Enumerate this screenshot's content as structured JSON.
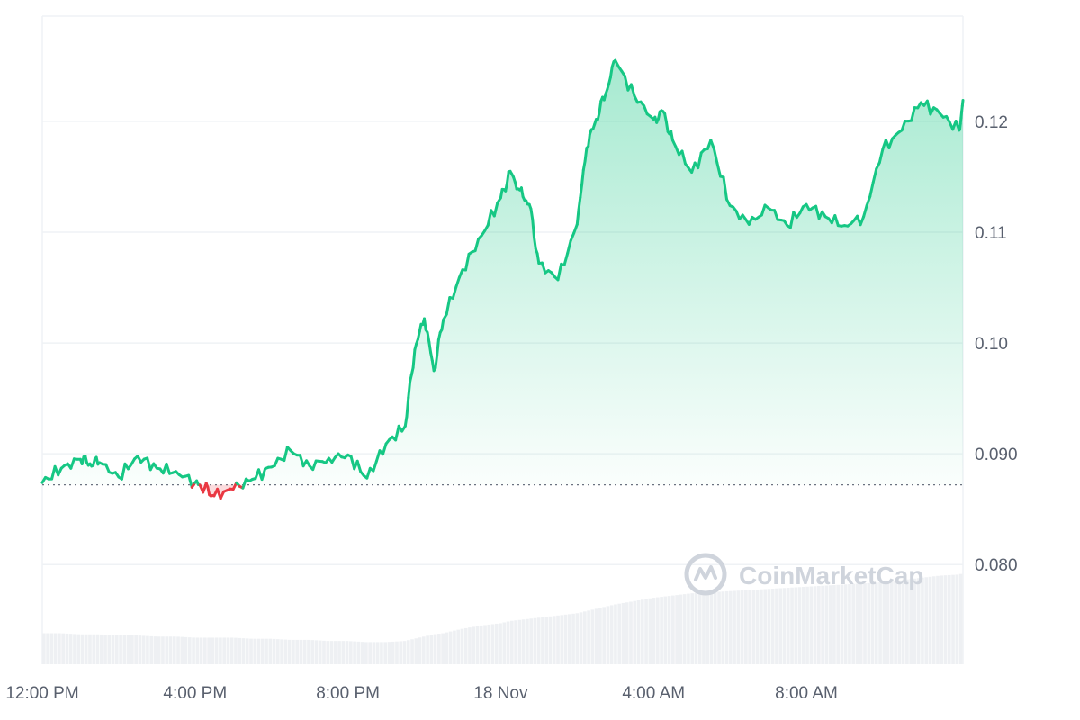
{
  "chart_data": {
    "type": "area",
    "title": "",
    "xlabel": "",
    "ylabel": "",
    "x_tick_labels": [
      "12:00 PM",
      "4:00 PM",
      "8:00 PM",
      "18 Nov",
      "4:00 AM",
      "8:00 AM"
    ],
    "x_tick_hours": [
      0,
      4,
      8,
      12,
      16,
      20
    ],
    "y_tick_labels": [
      "0.080",
      "0.090",
      "0.10",
      "0.11",
      "0.12"
    ],
    "y_ticks": [
      0.08,
      0.09,
      0.1,
      0.11,
      0.12
    ],
    "ylim": [
      0.071,
      0.1295
    ],
    "xlim_hours": [
      0,
      24.1
    ],
    "baseline": 0.0872,
    "grid": true,
    "colors": {
      "up": "#16c784",
      "down": "#ea3943",
      "grid": "#eff2f5",
      "volume": "#eef0f3",
      "baseline": "#6b7280"
    },
    "series": [
      {
        "x": [
          0,
          0.5,
          1,
          1.25,
          1.5,
          2,
          2.5,
          3,
          3.5,
          4,
          4.25,
          4.5,
          5,
          5.5,
          6,
          6.5,
          7,
          7.5,
          8,
          8.5,
          9,
          9.5,
          9.75,
          10,
          10.25,
          10.5,
          11,
          11.5,
          12,
          12.25,
          12.5,
          12.75,
          13,
          13.5,
          14,
          14.25,
          14.5,
          14.75,
          15,
          15.5,
          16,
          16.25,
          16.5,
          17,
          17.5,
          18,
          18.5,
          19,
          19.5,
          20,
          20.5,
          21,
          21.5,
          22,
          22.5,
          23,
          23.5,
          24,
          24.1
        ],
        "y": [
          0.0874,
          0.0887,
          0.0895,
          0.0891,
          0.0892,
          0.0879,
          0.0898,
          0.0887,
          0.0884,
          0.0874,
          0.0869,
          0.0862,
          0.0868,
          0.0877,
          0.0888,
          0.0903,
          0.0889,
          0.0896,
          0.0899,
          0.0878,
          0.0909,
          0.0925,
          0.0994,
          0.1022,
          0.0975,
          0.1021,
          0.1066,
          0.1097,
          0.1131,
          0.1155,
          0.1138,
          0.1125,
          0.1072,
          0.1057,
          0.1107,
          0.1176,
          0.1202,
          0.1225,
          0.1255,
          0.1223,
          0.1202,
          0.1209,
          0.1183,
          0.1154,
          0.1183,
          0.1124,
          0.1107,
          0.1122,
          0.1106,
          0.1125,
          0.1114,
          0.1106,
          0.1114,
          0.1175,
          0.1192,
          0.1217,
          0.1207,
          0.1192,
          0.1219
        ],
        "volume": [
          0.0738,
          0.0738,
          0.0737,
          0.0737,
          0.0737,
          0.0736,
          0.0736,
          0.0735,
          0.0735,
          0.0734,
          0.0734,
          0.0734,
          0.0734,
          0.0733,
          0.0733,
          0.0732,
          0.0732,
          0.0731,
          0.0731,
          0.073,
          0.073,
          0.0731,
          0.0733,
          0.0735,
          0.0737,
          0.0738,
          0.0742,
          0.0745,
          0.0747,
          0.0749,
          0.075,
          0.0751,
          0.0752,
          0.0754,
          0.0756,
          0.0758,
          0.076,
          0.0762,
          0.0764,
          0.0767,
          0.077,
          0.0771,
          0.0772,
          0.0774,
          0.0775,
          0.0776,
          0.0777,
          0.0778,
          0.0779,
          0.078,
          0.0781,
          0.0782,
          0.0783,
          0.0784,
          0.0786,
          0.0788,
          0.079,
          0.0791,
          0.0792
        ]
      }
    ]
  },
  "watermark": {
    "text": "CoinMarketCap",
    "icon": "coinmarketcap-logo-icon"
  }
}
